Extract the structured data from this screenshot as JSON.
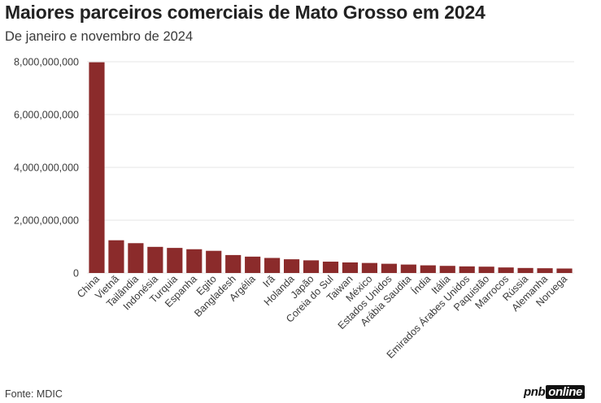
{
  "header": {
    "title": "Maiores parceiros comerciais de Mato Grosso em 2024",
    "subtitle": "De janeiro e novembro de 2024"
  },
  "footer": {
    "source": "Fonte: MDIC",
    "logo_part1": "pnb",
    "logo_part2": "online"
  },
  "colors": {
    "bar": "#8b2b2b",
    "grid": "#e6e6e6",
    "text": "#3a3a3a"
  },
  "chart_data": {
    "type": "bar",
    "title": "Maiores parceiros comerciais de Mato Grosso em 2024",
    "subtitle": "De janeiro e novembro de 2024",
    "xlabel": "",
    "ylabel": "",
    "ylim": [
      0,
      8000000000
    ],
    "yticks": [
      0,
      2000000000,
      4000000000,
      6000000000,
      8000000000
    ],
    "ytick_labels": [
      "0",
      "2,000,000,000",
      "4,000,000,000",
      "6,000,000,000",
      "8,000,000,000"
    ],
    "grid": true,
    "categories": [
      "China",
      "Vietnã",
      "Tailândia",
      "Indonésia",
      "Turquia",
      "Espanha",
      "Egito",
      "Bangladesh",
      "Argélia",
      "Irã",
      "Holanda",
      "Japão",
      "Coreia do Sul",
      "Taiwan",
      "México",
      "Estados Unidos",
      "Arábia Saudita",
      "Índia",
      "Itália",
      "Emirados Árabes Unidos",
      "Paquistão",
      "Marrocos",
      "Rússia",
      "Alemanha",
      "Noruega"
    ],
    "values": [
      7980000000,
      1240000000,
      1130000000,
      990000000,
      950000000,
      900000000,
      840000000,
      680000000,
      620000000,
      570000000,
      520000000,
      480000000,
      430000000,
      400000000,
      380000000,
      350000000,
      320000000,
      290000000,
      270000000,
      250000000,
      240000000,
      210000000,
      190000000,
      180000000,
      170000000
    ]
  }
}
